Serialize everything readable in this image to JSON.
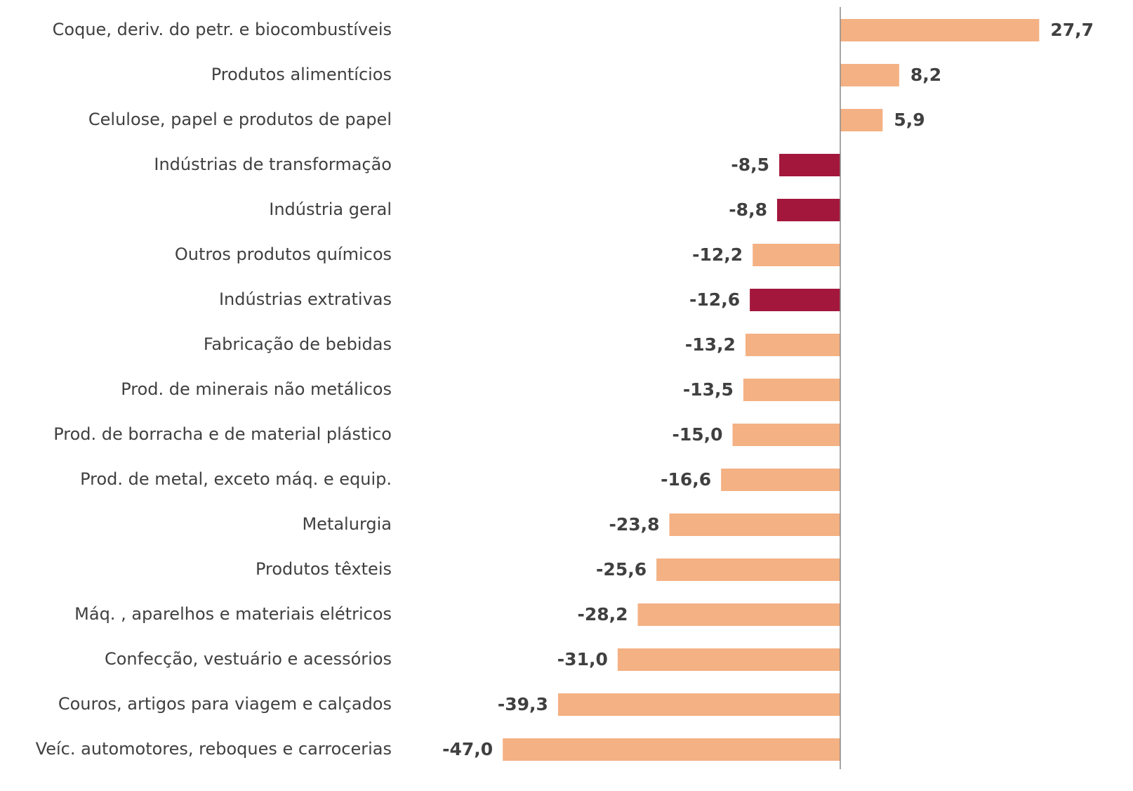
{
  "chart_data": {
    "type": "hbar",
    "categories": [
      "Coque, deriv. do petr. e biocombustíveis",
      "Produtos alimentícios",
      "Celulose, papel e produtos de papel",
      "Indústrias de transformação",
      "Indústria geral",
      "Outros produtos químicos",
      "Indústrias extrativas",
      "Fabricação de bebidas",
      "Prod. de minerais não metálicos",
      "Prod. de borracha e de material plástico",
      "Prod. de metal, exceto máq. e equip.",
      "Metalurgia",
      "Produtos têxteis",
      "Máq. , aparelhos e materiais elétricos",
      "Confecção, vestuário e acessórios",
      "Couros, artigos para viagem e calçados",
      "Veíc. automotores, reboques e carrocerias"
    ],
    "values": [
      27.7,
      8.2,
      5.9,
      -8.5,
      -8.8,
      -12.2,
      -12.6,
      -13.2,
      -13.5,
      -15.0,
      -16.6,
      -23.8,
      -25.6,
      -28.2,
      -31.0,
      -39.3,
      -47.0
    ],
    "value_labels": [
      "27,7",
      "8,2",
      "5,9",
      "-8,5",
      "-8,8",
      "-12,2",
      "-12,6",
      "-13,2",
      "-13,5",
      "-15,0",
      "-16,6",
      "-23,8",
      "-25,6",
      "-28,2",
      "-31,0",
      "-39,3",
      "-47,0"
    ],
    "colors": [
      "#f4b183",
      "#f4b183",
      "#f4b183",
      "#a3173c",
      "#a3173c",
      "#f4b183",
      "#a3173c",
      "#f4b183",
      "#f4b183",
      "#f4b183",
      "#f4b183",
      "#f4b183",
      "#f4b183",
      "#f4b183",
      "#f4b183",
      "#f4b183",
      "#f4b183"
    ],
    "xlim": [
      -50,
      30
    ]
  }
}
